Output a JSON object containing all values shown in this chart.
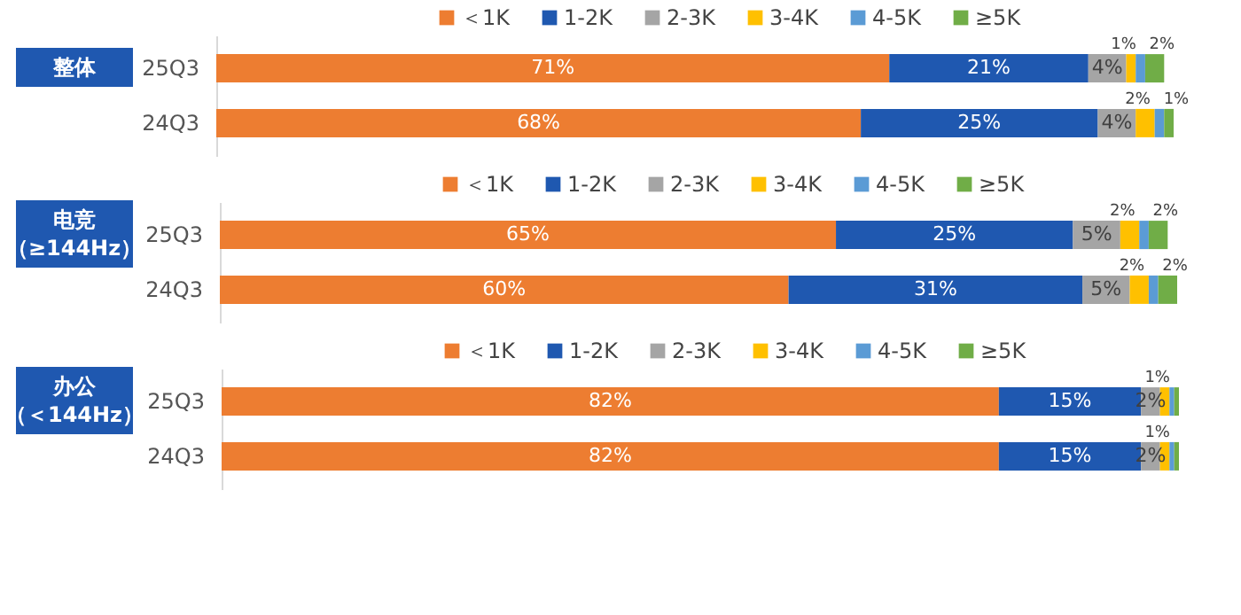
{
  "chart_data": [
    {
      "type": "bar",
      "title": "整体",
      "orientation": "horizontal",
      "stacked": true,
      "categories": [
        "25Q3",
        "24Q3"
      ],
      "legend": "top",
      "grid": false,
      "tick_labels": "y",
      "series": [
        {
          "name": "＜1K",
          "color": "#ed7d31",
          "values": [
            71,
            68
          ],
          "value_labels": [
            "71%",
            "68%"
          ]
        },
        {
          "name": "1-2K",
          "color": "#1f58b0",
          "values": [
            21,
            25
          ],
          "value_labels": [
            "21%",
            "25%"
          ]
        },
        {
          "name": "2-3K",
          "color": "#a5a5a5",
          "values": [
            4,
            4
          ],
          "value_labels": [
            "4%",
            "4%"
          ]
        },
        {
          "name": "3-4K",
          "color": "#ffc000",
          "values": [
            1,
            2
          ],
          "value_labels": [
            "1%",
            "2%"
          ]
        },
        {
          "name": "4-5K",
          "color": "#5b9bd5",
          "values": [
            1,
            1
          ],
          "value_labels": [
            null,
            null
          ]
        },
        {
          "name": "≥5K",
          "color": "#70ad47",
          "values": [
            2,
            1
          ],
          "value_labels": [
            "2%",
            "1%"
          ]
        }
      ]
    },
    {
      "type": "bar",
      "title": "电竞（≥144Hz）",
      "orientation": "horizontal",
      "stacked": true,
      "categories": [
        "25Q3",
        "24Q3"
      ],
      "legend": "top",
      "grid": false,
      "tick_labels": "y",
      "series": [
        {
          "name": "＜1K",
          "color": "#ed7d31",
          "values": [
            65,
            60
          ],
          "value_labels": [
            "65%",
            "60%"
          ]
        },
        {
          "name": "1-2K",
          "color": "#1f58b0",
          "values": [
            25,
            31
          ],
          "value_labels": [
            "25%",
            "31%"
          ]
        },
        {
          "name": "2-3K",
          "color": "#a5a5a5",
          "values": [
            5,
            5
          ],
          "value_labels": [
            "5%",
            "5%"
          ]
        },
        {
          "name": "3-4K",
          "color": "#ffc000",
          "values": [
            2,
            2
          ],
          "value_labels": [
            "2%",
            "2%"
          ]
        },
        {
          "name": "4-5K",
          "color": "#5b9bd5",
          "values": [
            1,
            1
          ],
          "value_labels": [
            null,
            null
          ]
        },
        {
          "name": "≥5K",
          "color": "#70ad47",
          "values": [
            2,
            2
          ],
          "value_labels": [
            "2%",
            "2%"
          ]
        }
      ]
    },
    {
      "type": "bar",
      "title": "办公（＜144Hz）",
      "orientation": "horizontal",
      "stacked": true,
      "categories": [
        "25Q3",
        "24Q3"
      ],
      "legend": "top",
      "grid": false,
      "tick_labels": "y",
      "series": [
        {
          "name": "＜1K",
          "color": "#ed7d31",
          "values": [
            82,
            82
          ],
          "value_labels": [
            "82%",
            "82%"
          ]
        },
        {
          "name": "1-2K",
          "color": "#1f58b0",
          "values": [
            15,
            15
          ],
          "value_labels": [
            "15%",
            "15%"
          ]
        },
        {
          "name": "2-3K",
          "color": "#a5a5a5",
          "values": [
            2,
            2
          ],
          "value_labels": [
            "2%",
            "2%"
          ]
        },
        {
          "name": "3-4K",
          "color": "#ffc000",
          "values": [
            1,
            1
          ],
          "value_labels": [
            "1%",
            "1%"
          ]
        },
        {
          "name": "4-5K",
          "color": "#5b9bd5",
          "values": [
            0.5,
            0.5
          ],
          "value_labels": [
            null,
            null
          ]
        },
        {
          "name": "≥5K",
          "color": "#70ad47",
          "values": [
            0.5,
            0.5
          ],
          "value_labels": [
            null,
            null
          ]
        }
      ]
    }
  ]
}
